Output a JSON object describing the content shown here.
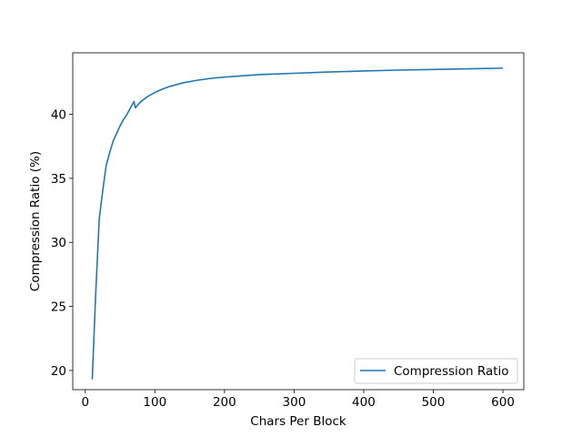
{
  "chart_data": {
    "type": "line",
    "title": "",
    "xlabel": "Chars Per Block",
    "ylabel": "Compression Ratio (%)",
    "xlim": [
      -18,
      630
    ],
    "ylim": [
      18.5,
      44.8
    ],
    "xticks": [
      0,
      100,
      200,
      300,
      400,
      500,
      600
    ],
    "yticks": [
      20,
      25,
      30,
      35,
      40
    ],
    "grid": false,
    "legend_position": "lower-right",
    "series": [
      {
        "name": "Compression Ratio",
        "color": "#1f77b4",
        "x": [
          10,
          15,
          20,
          25,
          30,
          35,
          40,
          45,
          50,
          55,
          60,
          65,
          70,
          72,
          75,
          80,
          90,
          100,
          110,
          120,
          140,
          160,
          180,
          200,
          225,
          250,
          275,
          300,
          350,
          400,
          450,
          500,
          550,
          600
        ],
        "y": [
          19.3,
          26.0,
          31.8,
          34.0,
          36.0,
          37.0,
          37.9,
          38.5,
          39.1,
          39.6,
          40.0,
          40.5,
          41.0,
          40.5,
          40.7,
          41.0,
          41.4,
          41.7,
          41.95,
          42.15,
          42.45,
          42.65,
          42.8,
          42.9,
          43.0,
          43.1,
          43.15,
          43.2,
          43.3,
          43.38,
          43.45,
          43.5,
          43.55,
          43.6
        ]
      }
    ]
  }
}
